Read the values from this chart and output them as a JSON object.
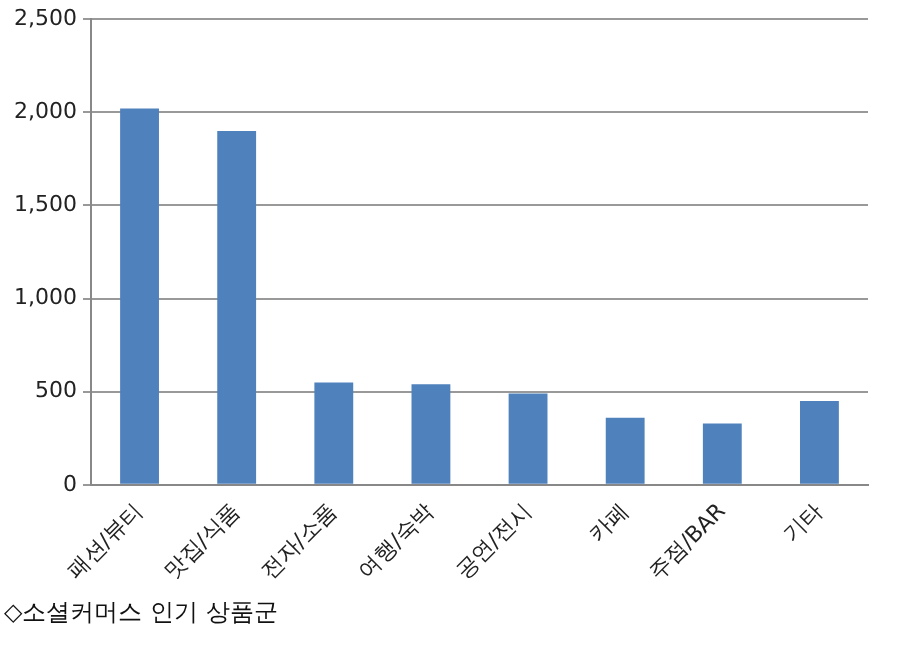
{
  "chart_data": {
    "type": "bar",
    "categories": [
      "패션/뷰티",
      "맛집/식품",
      "전자/소품",
      "여행/숙박",
      "공연/전시",
      "카페",
      "주점/BAR",
      "기타"
    ],
    "values": [
      2020,
      1900,
      550,
      540,
      490,
      360,
      330,
      450
    ],
    "color": "#4f81bd",
    "ylim": [
      0,
      2500
    ],
    "yticks": [
      0,
      500,
      {
        "value": 1000,
        "label": "1,000"
      },
      {
        "value": 1500,
        "label": "1,500"
      },
      {
        "value": 2000,
        "label": "2,000"
      },
      {
        "value": 2500,
        "label": "2,500"
      }
    ],
    "grid": "y",
    "legend": false,
    "annotations": [
      "◇소셜커머스 인기 상품군"
    ]
  }
}
